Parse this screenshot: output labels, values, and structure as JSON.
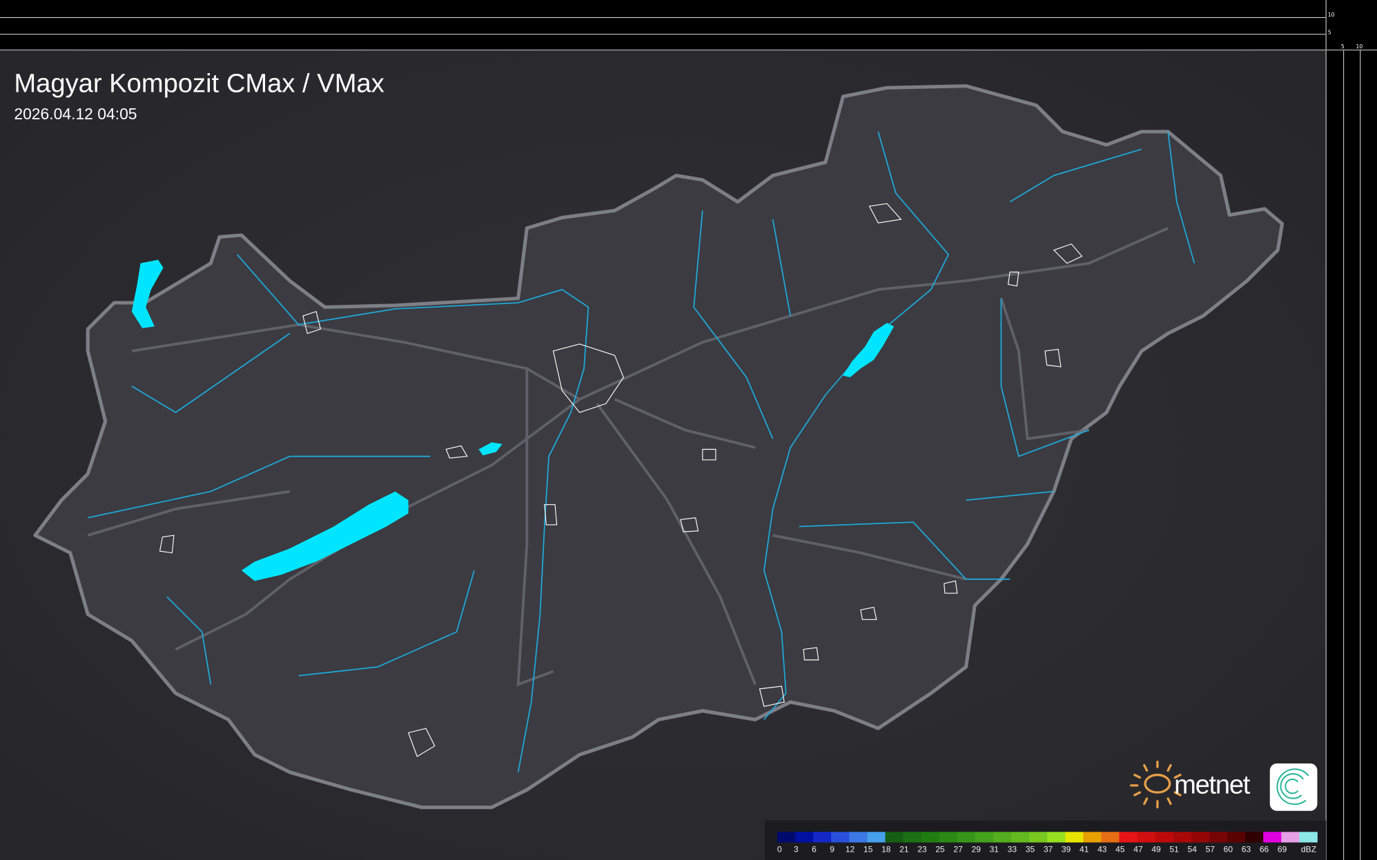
{
  "header": {
    "title": "Magyar Kompozit CMax / VMax",
    "timestamp": "2026.04.12 04:05"
  },
  "axes": {
    "vertical_ticks": [
      "10",
      "5"
    ],
    "horizontal_ticks": [
      "5",
      "10"
    ]
  },
  "legend": {
    "unit": "dBZ",
    "labels": [
      "0",
      "3",
      "6",
      "9",
      "12",
      "15",
      "18",
      "21",
      "23",
      "25",
      "27",
      "29",
      "31",
      "33",
      "35",
      "37",
      "39",
      "41",
      "43",
      "45",
      "47",
      "49",
      "51",
      "54",
      "57",
      "60",
      "63",
      "66",
      "69"
    ],
    "colors": [
      "#000a6e",
      "#0010a0",
      "#1428c8",
      "#2850dc",
      "#3c78e6",
      "#46a0eb",
      "#145f14",
      "#1a7012",
      "#217d12",
      "#2a8a14",
      "#37961a",
      "#45a21c",
      "#54ae1e",
      "#63ba1e",
      "#78c820",
      "#96e020",
      "#e6e600",
      "#e6a000",
      "#e66e14",
      "#e61414",
      "#d20f0f",
      "#be0a0a",
      "#aa0808",
      "#960606",
      "#780404",
      "#5a0202",
      "#300000",
      "#e000e0",
      "#e6a0e6",
      "#8ce6e6"
    ]
  },
  "logos": {
    "brand": "metnet",
    "sun_color": "#e8a04a",
    "water_color": "#00e5ff"
  }
}
